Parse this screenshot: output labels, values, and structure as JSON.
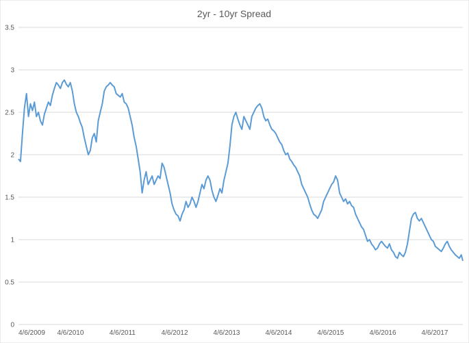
{
  "chart_data": {
    "type": "line",
    "title": "2yr - 10yr Spread",
    "xlabel": "",
    "ylabel": "",
    "ylim": [
      0,
      3.5
    ],
    "y_ticks": [
      "0",
      "0.5",
      "1",
      "1.5",
      "2",
      "2.5",
      "3",
      "3.5"
    ],
    "x_ticks": [
      "4/6/2009",
      "4/6/2010",
      "4/6/2011",
      "4/6/2012",
      "4/6/2013",
      "4/6/2014",
      "4/6/2015",
      "4/6/2016",
      "4/6/2017"
    ],
    "xlim": [
      "2009-04-06",
      "2017-10-20"
    ],
    "grid": true,
    "legend": "none",
    "line_color": "#5b9bd5",
    "series": [
      {
        "x": [
          "2009-04-06",
          "2009-04-20",
          "2009-05-04",
          "2009-05-18",
          "2009-06-01",
          "2009-06-15",
          "2009-06-29",
          "2009-07-13",
          "2009-07-27",
          "2009-08-10",
          "2009-08-24",
          "2009-09-07",
          "2009-09-21",
          "2009-10-05",
          "2009-10-19",
          "2009-11-02",
          "2009-11-16",
          "2009-11-30",
          "2009-12-14",
          "2009-12-28",
          "2010-01-11",
          "2010-01-25",
          "2010-02-08",
          "2010-02-22",
          "2010-03-08",
          "2010-03-22",
          "2010-04-05",
          "2010-04-19",
          "2010-05-03",
          "2010-05-17",
          "2010-05-31",
          "2010-06-14",
          "2010-06-28",
          "2010-07-12",
          "2010-07-26",
          "2010-08-09",
          "2010-08-23",
          "2010-09-06",
          "2010-09-20",
          "2010-10-04",
          "2010-10-18",
          "2010-11-01",
          "2010-11-15",
          "2010-11-29",
          "2010-12-13",
          "2010-12-27",
          "2011-01-10",
          "2011-01-24",
          "2011-02-07",
          "2011-02-21",
          "2011-03-07",
          "2011-03-21",
          "2011-04-04",
          "2011-04-18",
          "2011-05-02",
          "2011-05-16",
          "2011-05-30",
          "2011-06-13",
          "2011-06-27",
          "2011-07-11",
          "2011-07-25",
          "2011-08-08",
          "2011-08-22",
          "2011-09-05",
          "2011-09-19",
          "2011-10-03",
          "2011-10-17",
          "2011-10-31",
          "2011-11-14",
          "2011-11-28",
          "2011-12-12",
          "2011-12-26",
          "2012-01-09",
          "2012-01-23",
          "2012-02-06",
          "2012-02-20",
          "2012-03-05",
          "2012-03-19",
          "2012-04-02",
          "2012-04-16",
          "2012-04-30",
          "2012-05-14",
          "2012-05-28",
          "2012-06-11",
          "2012-06-25",
          "2012-07-09",
          "2012-07-23",
          "2012-08-06",
          "2012-08-20",
          "2012-09-03",
          "2012-09-17",
          "2012-10-01",
          "2012-10-15",
          "2012-10-29",
          "2012-11-12",
          "2012-11-26",
          "2012-12-10",
          "2012-12-24",
          "2013-01-07",
          "2013-01-21",
          "2013-02-04",
          "2013-02-18",
          "2013-03-04",
          "2013-03-18",
          "2013-04-01",
          "2013-04-15",
          "2013-04-29",
          "2013-05-13",
          "2013-05-27",
          "2013-06-10",
          "2013-06-24",
          "2013-07-08",
          "2013-07-22",
          "2013-08-05",
          "2013-08-19",
          "2013-09-02",
          "2013-09-16",
          "2013-09-30",
          "2013-10-14",
          "2013-10-28",
          "2013-11-11",
          "2013-11-25",
          "2013-12-09",
          "2013-12-23",
          "2014-01-06",
          "2014-01-20",
          "2014-02-03",
          "2014-02-17",
          "2014-03-03",
          "2014-03-17",
          "2014-03-31",
          "2014-04-14",
          "2014-04-28",
          "2014-05-12",
          "2014-05-26",
          "2014-06-09",
          "2014-06-23",
          "2014-07-07",
          "2014-07-21",
          "2014-08-04",
          "2014-08-18",
          "2014-09-01",
          "2014-09-15",
          "2014-09-29",
          "2014-10-13",
          "2014-10-27",
          "2014-11-10",
          "2014-11-24",
          "2014-12-08",
          "2014-12-22",
          "2015-01-05",
          "2015-01-19",
          "2015-02-02",
          "2015-02-16",
          "2015-03-02",
          "2015-03-16",
          "2015-03-30",
          "2015-04-13",
          "2015-04-27",
          "2015-05-11",
          "2015-05-25",
          "2015-06-08",
          "2015-06-22",
          "2015-07-06",
          "2015-07-20",
          "2015-08-03",
          "2015-08-17",
          "2015-08-31",
          "2015-09-14",
          "2015-09-28",
          "2015-10-12",
          "2015-10-26",
          "2015-11-09",
          "2015-11-23",
          "2015-12-07",
          "2015-12-21",
          "2016-01-04",
          "2016-01-18",
          "2016-02-01",
          "2016-02-15",
          "2016-02-29",
          "2016-03-14",
          "2016-03-28",
          "2016-04-11",
          "2016-04-25",
          "2016-05-09",
          "2016-05-23",
          "2016-06-06",
          "2016-06-20",
          "2016-07-04",
          "2016-07-18",
          "2016-08-01",
          "2016-08-15",
          "2016-08-29",
          "2016-09-12",
          "2016-09-26",
          "2016-10-10",
          "2016-10-24",
          "2016-11-07",
          "2016-11-21",
          "2016-12-05",
          "2016-12-19",
          "2017-01-02",
          "2017-01-16",
          "2017-01-30",
          "2017-02-13",
          "2017-02-27",
          "2017-03-13",
          "2017-03-27",
          "2017-04-10",
          "2017-04-24",
          "2017-05-08",
          "2017-05-22",
          "2017-06-05",
          "2017-06-19",
          "2017-07-03",
          "2017-07-17",
          "2017-07-31",
          "2017-08-14",
          "2017-08-28",
          "2017-09-11",
          "2017-09-25",
          "2017-10-09",
          "2017-10-20"
        ],
        "y": [
          1.95,
          1.92,
          2.25,
          2.55,
          2.72,
          2.45,
          2.6,
          2.52,
          2.62,
          2.45,
          2.5,
          2.4,
          2.35,
          2.48,
          2.55,
          2.62,
          2.58,
          2.7,
          2.78,
          2.85,
          2.82,
          2.78,
          2.85,
          2.88,
          2.83,
          2.8,
          2.85,
          2.75,
          2.6,
          2.5,
          2.45,
          2.38,
          2.32,
          2.2,
          2.1,
          2.0,
          2.05,
          2.2,
          2.25,
          2.15,
          2.4,
          2.5,
          2.6,
          2.75,
          2.8,
          2.82,
          2.85,
          2.82,
          2.8,
          2.72,
          2.7,
          2.68,
          2.72,
          2.62,
          2.6,
          2.55,
          2.45,
          2.35,
          2.2,
          2.1,
          1.95,
          1.8,
          1.55,
          1.7,
          1.8,
          1.65,
          1.7,
          1.75,
          1.65,
          1.7,
          1.75,
          1.72,
          1.9,
          1.85,
          1.75,
          1.65,
          1.55,
          1.42,
          1.35,
          1.3,
          1.28,
          1.22,
          1.3,
          1.35,
          1.45,
          1.38,
          1.42,
          1.5,
          1.45,
          1.38,
          1.45,
          1.55,
          1.65,
          1.6,
          1.7,
          1.75,
          1.7,
          1.58,
          1.5,
          1.45,
          1.52,
          1.6,
          1.55,
          1.7,
          1.8,
          1.9,
          2.1,
          2.35,
          2.45,
          2.5,
          2.42,
          2.35,
          2.3,
          2.45,
          2.4,
          2.35,
          2.3,
          2.45,
          2.5,
          2.55,
          2.58,
          2.6,
          2.55,
          2.45,
          2.4,
          2.42,
          2.35,
          2.3,
          2.28,
          2.25,
          2.2,
          2.15,
          2.12,
          2.05,
          2.0,
          2.02,
          1.95,
          1.92,
          1.88,
          1.85,
          1.8,
          1.75,
          1.65,
          1.6,
          1.55,
          1.5,
          1.42,
          1.35,
          1.3,
          1.28,
          1.25,
          1.3,
          1.35,
          1.45,
          1.5,
          1.55,
          1.6,
          1.65,
          1.68,
          1.75,
          1.7,
          1.55,
          1.5,
          1.45,
          1.48,
          1.42,
          1.45,
          1.4,
          1.38,
          1.3,
          1.25,
          1.2,
          1.15,
          1.12,
          1.05,
          0.98,
          1.0,
          0.95,
          0.92,
          0.88,
          0.9,
          0.95,
          0.98,
          0.95,
          0.92,
          0.9,
          0.95,
          0.88,
          0.85,
          0.8,
          0.78,
          0.85,
          0.82,
          0.8,
          0.85,
          0.95,
          1.1,
          1.25,
          1.3,
          1.32,
          1.25,
          1.22,
          1.25,
          1.2,
          1.15,
          1.1,
          1.05,
          1.0,
          0.98,
          0.92,
          0.9,
          0.88,
          0.86,
          0.9,
          0.95,
          0.98,
          0.92,
          0.88,
          0.85,
          0.82,
          0.8,
          0.78,
          0.82,
          0.75
        ]
      }
    ]
  }
}
